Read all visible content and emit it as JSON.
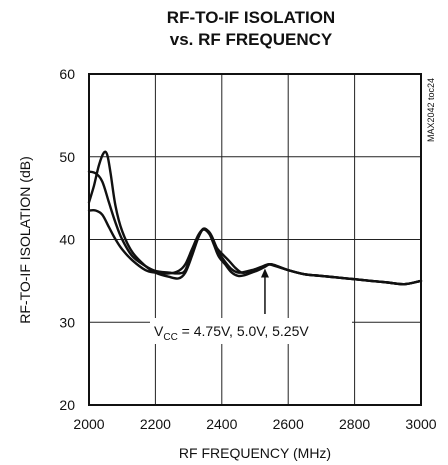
{
  "chart_data": {
    "type": "line",
    "title": [
      "RF-TO-IF ISOLATION",
      "vs. RF FREQUENCY"
    ],
    "xlabel": "RF FREQUENCY (MHz)",
    "ylabel": "RF-TO-IF ISOLATION (dB)",
    "xlim": [
      2000,
      3000
    ],
    "ylim": [
      20,
      60
    ],
    "xticks": [
      2000,
      2200,
      2400,
      2600,
      2800,
      3000
    ],
    "yticks": [
      20,
      30,
      40,
      50,
      60
    ],
    "grid": true,
    "side_note": "MAX2042 toc24",
    "annotation": {
      "label": "V",
      "subscript": "CC",
      "rest": " = 4.75V, 5.0V, 5.25V",
      "arrow_to": [
        2530,
        36.5
      ]
    },
    "series": [
      {
        "x": [
          2000,
          2015,
          2030,
          2045,
          2055,
          2065,
          2080,
          2100,
          2130,
          2170,
          2200,
          2240,
          2270,
          2290,
          2310,
          2330,
          2345,
          2360,
          2370,
          2385,
          2400,
          2420,
          2440,
          2460,
          2480,
          2500,
          2520,
          2540,
          2560,
          2600,
          2650,
          2700,
          2750,
          2800,
          2850,
          2900,
          2950,
          3000
        ],
        "y": [
          44.5,
          46.5,
          49.0,
          50.5,
          50.2,
          48.0,
          44.0,
          41.0,
          38.5,
          36.8,
          36.0,
          35.5,
          35.3,
          36.0,
          38.0,
          40.3,
          41.3,
          41.0,
          40.4,
          39.0,
          38.3,
          37.5,
          36.6,
          36.0,
          36.1,
          36.4,
          36.7,
          37.0,
          36.8,
          36.3,
          35.8,
          35.6,
          35.4,
          35.2,
          35.0,
          34.8,
          34.6,
          35.0
        ]
      },
      {
        "x": [
          2000,
          2020,
          2040,
          2060,
          2080,
          2100,
          2130,
          2170,
          2200,
          2240,
          2270,
          2290,
          2310,
          2330,
          2345,
          2360,
          2375,
          2390,
          2410,
          2430,
          2450,
          2470,
          2490,
          2510,
          2530,
          2550,
          2600,
          2650,
          2700,
          2750,
          2800,
          2850,
          2900,
          2950,
          3000
        ],
        "y": [
          48.2,
          48.0,
          47.0,
          44.5,
          42.0,
          40.0,
          38.0,
          36.8,
          36.2,
          36.0,
          35.9,
          36.3,
          38.5,
          40.5,
          41.3,
          40.9,
          39.5,
          38.0,
          37.0,
          36.0,
          35.6,
          35.7,
          36.0,
          36.3,
          36.7,
          37.0,
          36.3,
          35.8,
          35.6,
          35.4,
          35.2,
          35.0,
          34.8,
          34.6,
          35.0
        ]
      },
      {
        "x": [
          2000,
          2020,
          2040,
          2060,
          2080,
          2100,
          2130,
          2170,
          2200,
          2240,
          2270,
          2290,
          2310,
          2330,
          2345,
          2360,
          2375,
          2390,
          2410,
          2430,
          2450,
          2470,
          2490,
          2510,
          2530,
          2550,
          2600,
          2650,
          2700,
          2750,
          2800,
          2850,
          2900,
          2950,
          3000
        ],
        "y": [
          43.5,
          43.5,
          43.0,
          41.5,
          40.0,
          38.8,
          37.5,
          36.3,
          36.0,
          35.9,
          36.2,
          37.0,
          38.8,
          40.6,
          41.2,
          40.8,
          39.8,
          38.5,
          37.3,
          36.4,
          36.0,
          36.1,
          36.3,
          36.5,
          36.8,
          37.0,
          36.3,
          35.8,
          35.6,
          35.4,
          35.2,
          35.0,
          34.8,
          34.6,
          35.0
        ]
      }
    ]
  }
}
